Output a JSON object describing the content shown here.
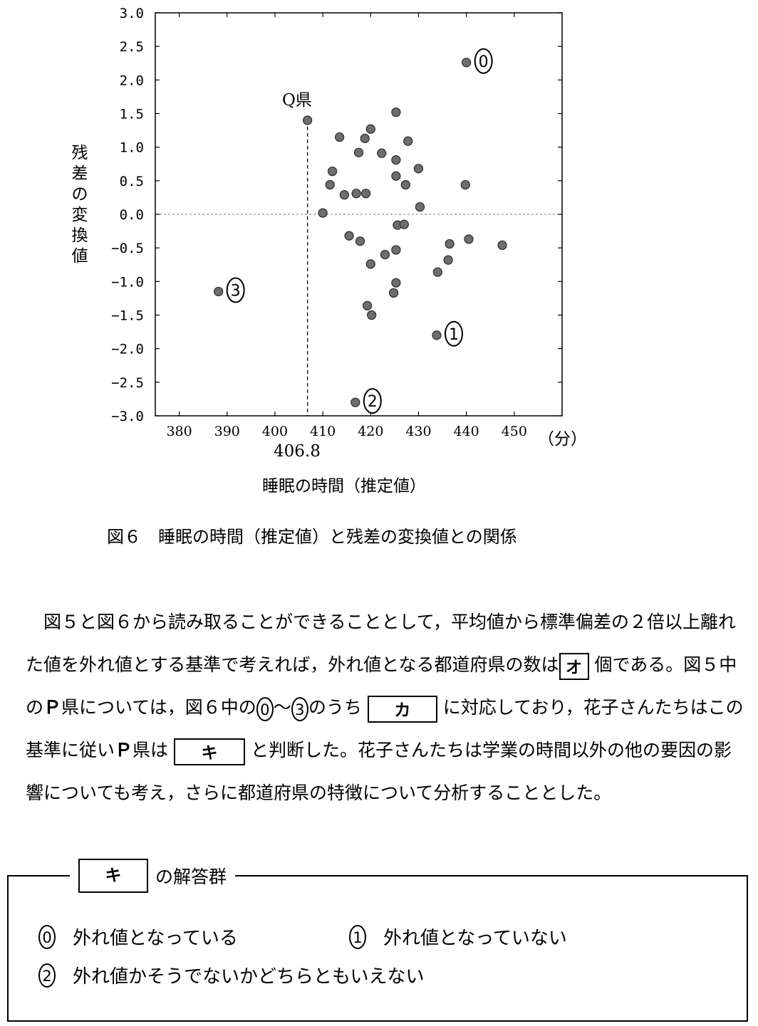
{
  "chart_data": {
    "type": "scatter",
    "xlabel": "睡眠の時間（推定値）",
    "ylabel": "残差の変換値",
    "x_unit": "（分）",
    "xlim": [
      375,
      460
    ],
    "ylim": [
      -3.0,
      3.0
    ],
    "xticks": [
      380,
      390,
      400,
      410,
      420,
      430,
      440,
      450
    ],
    "yticks": [
      "3.0",
      "2.5",
      "2.0",
      "1.5",
      "1.0",
      "0.5",
      "0.0",
      "-0.5",
      "-1.0",
      "-1.5",
      "-2.0",
      "-2.5",
      "-3.0"
    ],
    "points": [
      [
        406.8,
        1.4
      ],
      [
        413.5,
        1.15
      ],
      [
        420.0,
        1.27
      ],
      [
        418.8,
        1.13
      ],
      [
        417.5,
        0.92
      ],
      [
        425.3,
        1.52
      ],
      [
        427.8,
        1.09
      ],
      [
        422.3,
        0.91
      ],
      [
        425.3,
        0.81
      ],
      [
        430.0,
        0.68
      ],
      [
        425.3,
        0.57
      ],
      [
        427.3,
        0.44
      ],
      [
        412.0,
        0.64
      ],
      [
        411.5,
        0.44
      ],
      [
        414.5,
        0.29
      ],
      [
        417.0,
        0.31
      ],
      [
        419.0,
        0.31
      ],
      [
        439.8,
        0.44
      ],
      [
        430.3,
        0.11
      ],
      [
        410.0,
        0.02
      ],
      [
        425.6,
        -0.16
      ],
      [
        427.0,
        -0.15
      ],
      [
        415.5,
        -0.32
      ],
      [
        417.8,
        -0.4
      ],
      [
        436.5,
        -0.44
      ],
      [
        440.5,
        -0.37
      ],
      [
        447.5,
        -0.46
      ],
      [
        425.3,
        -0.53
      ],
      [
        423.0,
        -0.6
      ],
      [
        420.0,
        -0.74
      ],
      [
        436.2,
        -0.68
      ],
      [
        434.0,
        -0.86
      ],
      [
        425.3,
        -1.02
      ],
      [
        424.8,
        -1.17
      ],
      [
        419.3,
        -1.36
      ],
      [
        420.2,
        -1.5
      ],
      [
        433.8,
        -1.8
      ],
      [
        416.8,
        -2.8
      ],
      [
        388.2,
        -1.15
      ],
      [
        440.0,
        2.26
      ]
    ],
    "q_point": {
      "label": "Q県",
      "x": 406.8,
      "y": 1.4,
      "xmark": "406.8"
    },
    "markers": [
      {
        "label": "0",
        "x": 440.0,
        "y": 2.26
      },
      {
        "label": "1",
        "x": 433.8,
        "y": -1.8
      },
      {
        "label": "2",
        "x": 416.8,
        "y": -2.8
      },
      {
        "label": "3",
        "x": 388.2,
        "y": -1.15
      }
    ],
    "zero_line": true
  },
  "caption": "図６　睡眠の時間（推定値）と残差の変換値との関係",
  "paragraph": {
    "part1": "図５と図６から読み取ることができることとして，平均値から標準偏差の２倍以上離れた値を外れ値とする基準で考えれば，外れ値となる都道府県の数は",
    "box_o": "オ",
    "part2": "個である。図５中の",
    "p_pref": "Ｐ",
    "part3": "県については，図６中の",
    "c0": "0",
    "tilde": "～",
    "c3": "3",
    "part4": "のうち",
    "box_ka": "カ",
    "part5": "に対応しており，花子さんたちはこの基準に従い",
    "p_pref2": "Ｐ",
    "part6": "県は",
    "box_ki": "キ",
    "part7": "と判断した。花子さんたちは学業の時間以外の他の要因の影響についても考え，さらに都道府県の特徴について分析することとした。"
  },
  "answer_group": {
    "box_label": "キ",
    "title": "の解答群",
    "options": [
      {
        "num": "0",
        "text": "外れ値となっている"
      },
      {
        "num": "1",
        "text": "外れ値となっていない"
      },
      {
        "num": "2",
        "text": "外れ値かそうでないかどちらともいえない"
      }
    ]
  }
}
